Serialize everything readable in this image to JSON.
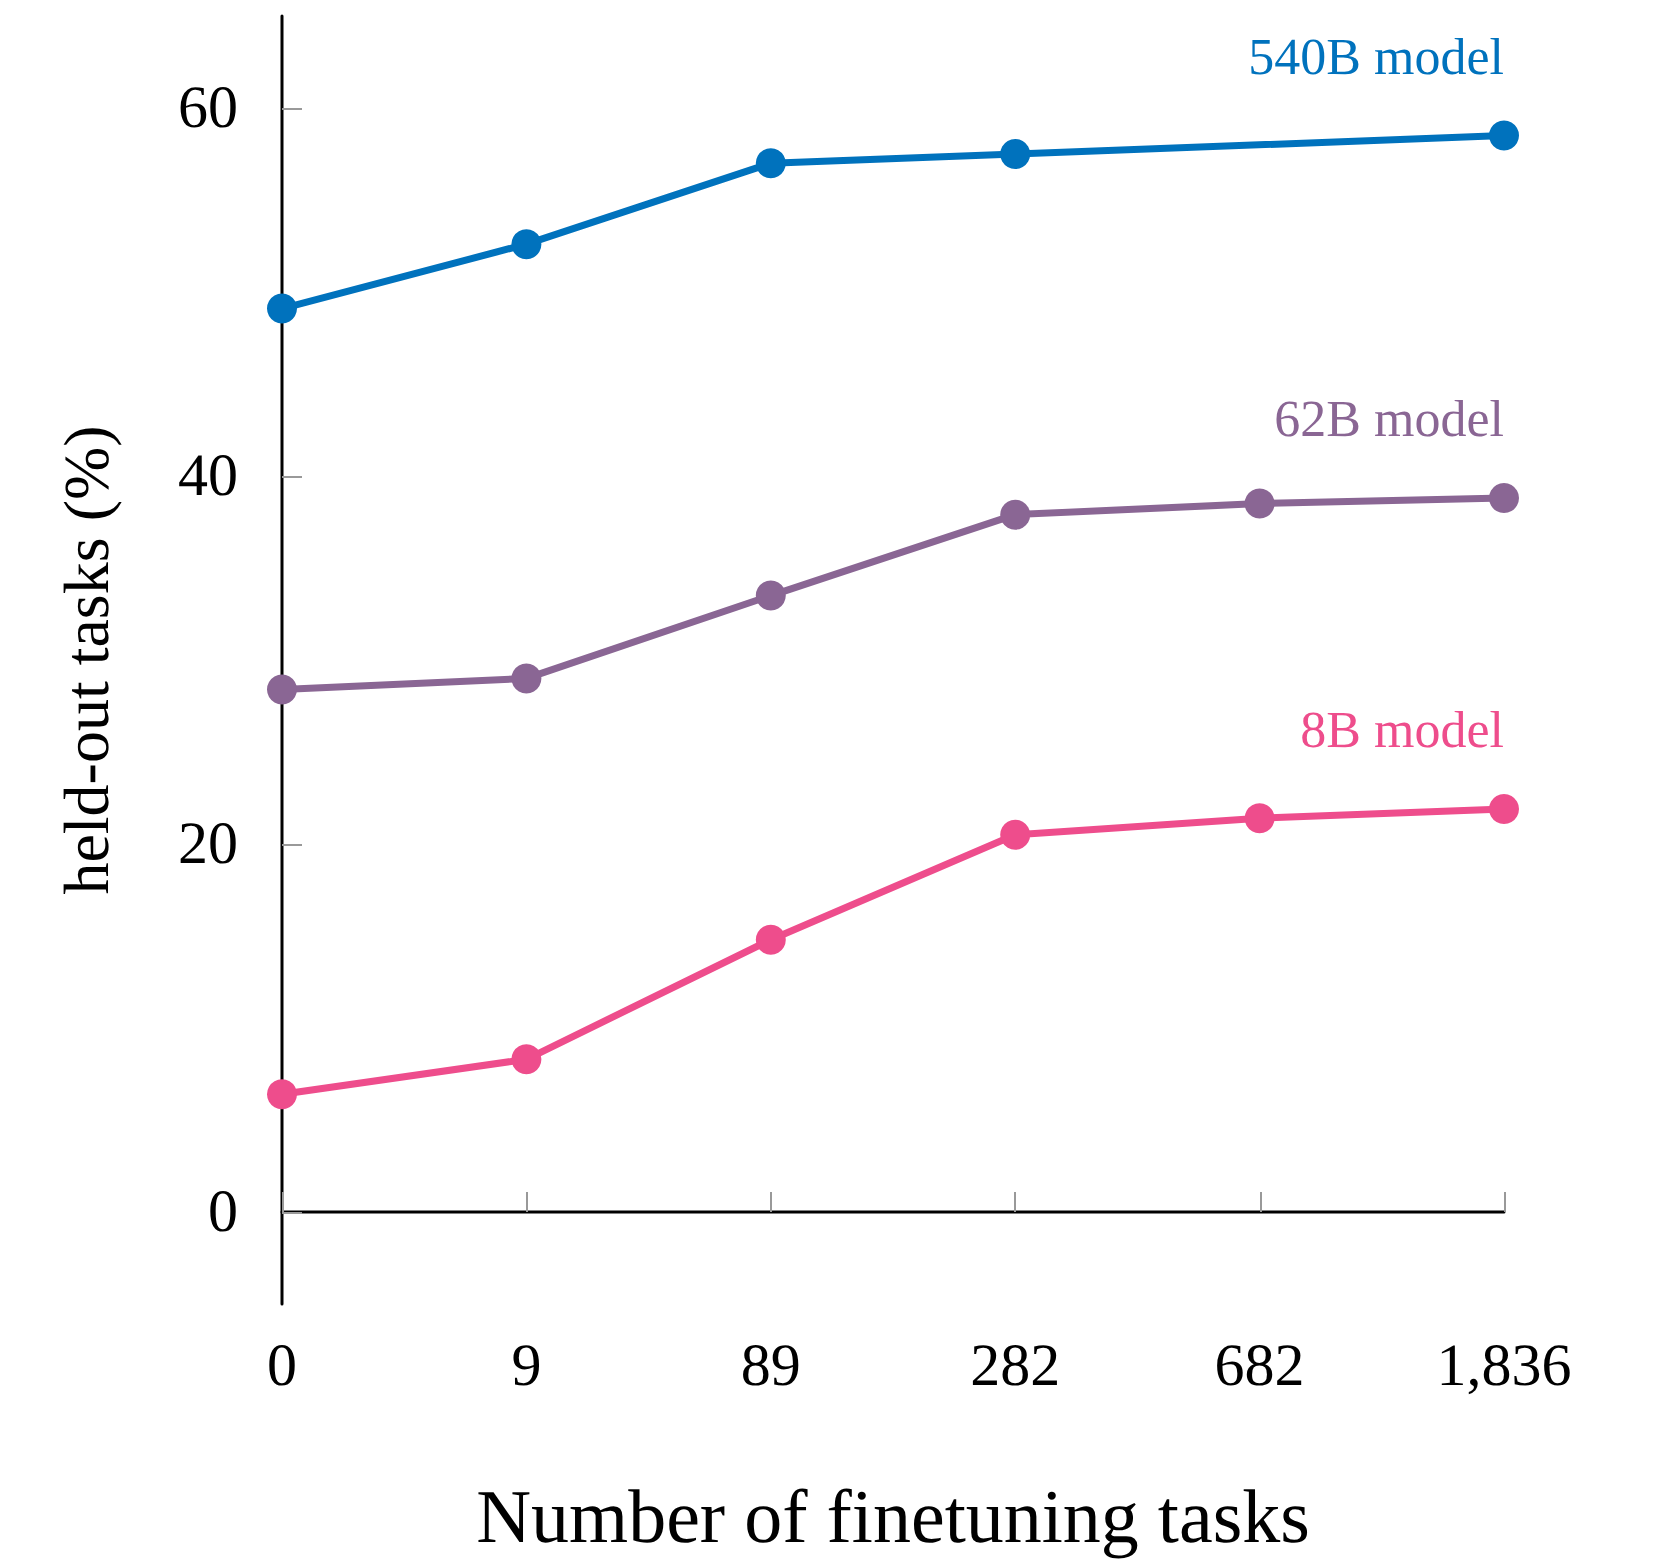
{
  "chart_data": {
    "type": "line",
    "xlabel": "Number of finetuning tasks",
    "ylabel": "held-out tasks (%)",
    "categories": [
      "0",
      "9",
      "89",
      "282",
      "682",
      "1,836"
    ],
    "series": [
      {
        "name": "540B model",
        "color": "#0072bd",
        "values": [
          49.1,
          52.6,
          57.0,
          57.5,
          null,
          58.5
        ]
      },
      {
        "name": "62B model",
        "color": "#8a6694",
        "values": [
          28.4,
          29.0,
          33.5,
          37.9,
          38.5,
          38.8
        ]
      },
      {
        "name": "8B model",
        "color": "#ee4d8c",
        "values": [
          6.4,
          8.3,
          14.8,
          20.5,
          21.4,
          21.9
        ]
      }
    ],
    "ylim": [
      -5,
      65
    ],
    "yticks": [
      0,
      20,
      40,
      60
    ],
    "grid": false,
    "legend": false,
    "marker": "circle",
    "line_style": "solid"
  }
}
